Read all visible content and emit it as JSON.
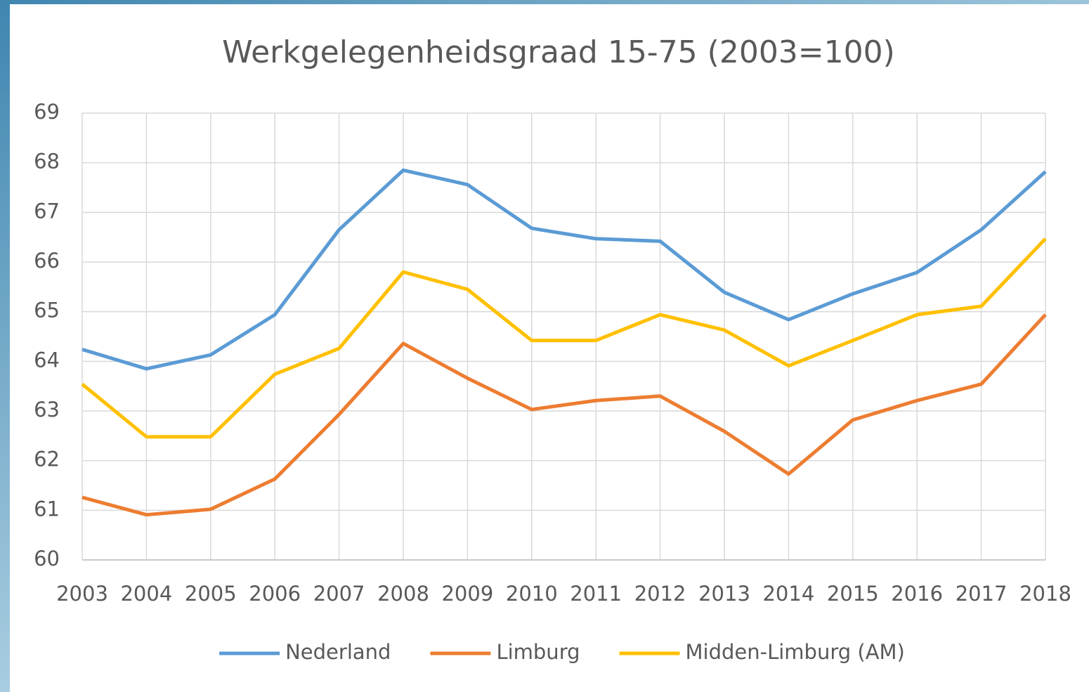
{
  "chart_data": {
    "type": "line",
    "title": "Werkgelegenheidsgraad  15-75 (2003=100)",
    "categories": [
      "2003",
      "2004",
      "2005",
      "2006",
      "2007",
      "2008",
      "2009",
      "2010",
      "2011",
      "2012",
      "2013",
      "2014",
      "2015",
      "2016",
      "2017",
      "2018"
    ],
    "series": [
      {
        "name": "Nederland",
        "color": "#5b9bd5",
        "values": [
          64.24,
          63.85,
          64.13,
          64.94,
          66.65,
          67.85,
          67.56,
          66.68,
          66.47,
          66.42,
          65.39,
          64.84,
          65.36,
          65.79,
          66.65,
          67.82
        ]
      },
      {
        "name": "Limburg",
        "color": "#ed7d31",
        "values": [
          61.26,
          60.91,
          61.02,
          61.63,
          62.93,
          64.36,
          63.66,
          63.03,
          63.21,
          63.3,
          62.59,
          61.73,
          62.82,
          63.21,
          63.54,
          64.94
        ]
      },
      {
        "name": "Midden-Limburg (AM)",
        "color": "#ffc000",
        "values": [
          63.54,
          62.48,
          62.48,
          63.74,
          64.26,
          65.8,
          65.45,
          64.42,
          64.42,
          64.94,
          64.63,
          63.91,
          64.42,
          64.94,
          65.11,
          66.47
        ]
      }
    ],
    "ylim": [
      60,
      69
    ],
    "yticks": [
      60,
      61,
      62,
      63,
      64,
      65,
      66,
      67,
      68,
      69
    ],
    "grid": true,
    "legend": "bottom"
  }
}
